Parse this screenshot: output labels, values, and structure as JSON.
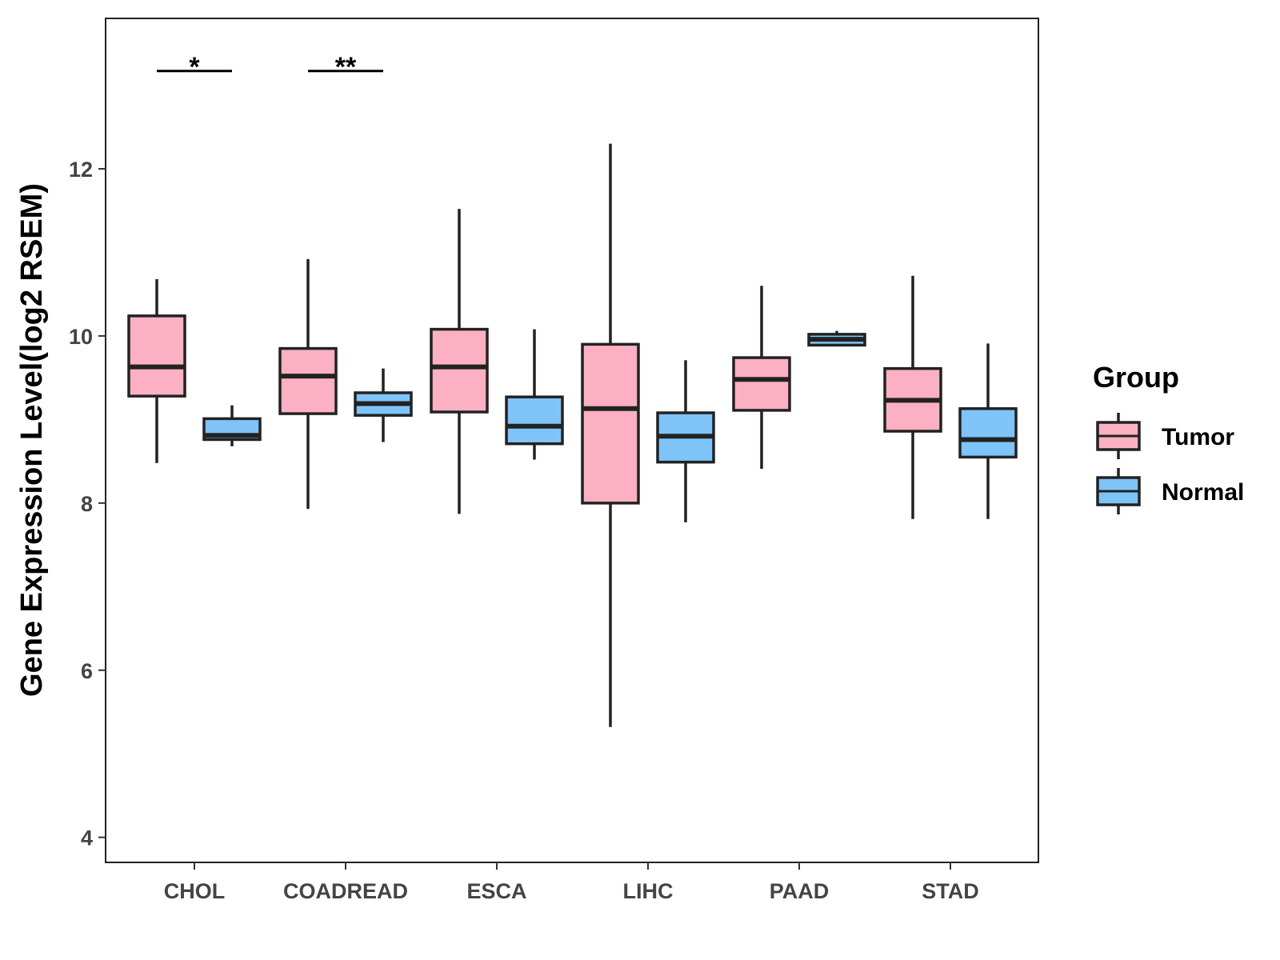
{
  "chart_data": {
    "type": "boxplot",
    "title": "",
    "xlabel": "",
    "ylabel": "Gene Expression Level(log2 RSEM)",
    "ylim": [
      3.7,
      13.8
    ],
    "yticks": [
      4,
      6,
      8,
      10,
      12
    ],
    "grid": false,
    "legend": {
      "title": "Group",
      "position": "right"
    },
    "categories": [
      "CHOL",
      "COADREAD",
      "ESCA",
      "LIHC",
      "PAAD",
      "STAD"
    ],
    "series": [
      {
        "name": "Tumor",
        "color": "#fbb1c3",
        "boxes": [
          {
            "min": 8.48,
            "q1": 9.28,
            "median": 9.63,
            "q3": 10.24,
            "max": 10.68
          },
          {
            "min": 7.93,
            "q1": 9.07,
            "median": 9.52,
            "q3": 9.85,
            "max": 10.92
          },
          {
            "min": 7.87,
            "q1": 9.09,
            "median": 9.63,
            "q3": 10.08,
            "max": 11.52
          },
          {
            "min": 5.32,
            "q1": 8.0,
            "median": 9.13,
            "q3": 9.9,
            "max": 12.3
          },
          {
            "min": 8.41,
            "q1": 9.11,
            "median": 9.48,
            "q3": 9.74,
            "max": 10.6
          },
          {
            "min": 7.81,
            "q1": 8.86,
            "median": 9.23,
            "q3": 9.61,
            "max": 10.72
          }
        ]
      },
      {
        "name": "Normal",
        "color": "#7fc4f9",
        "boxes": [
          {
            "min": 8.68,
            "q1": 8.76,
            "median": 8.81,
            "q3": 9.01,
            "max": 9.17
          },
          {
            "min": 8.73,
            "q1": 9.05,
            "median": 9.19,
            "q3": 9.32,
            "max": 9.61
          },
          {
            "min": 8.52,
            "q1": 8.71,
            "median": 8.92,
            "q3": 9.27,
            "max": 10.08
          },
          {
            "min": 7.77,
            "q1": 8.49,
            "median": 8.8,
            "q3": 9.08,
            "max": 9.71
          },
          {
            "min": 9.89,
            "q1": 9.89,
            "median": 9.96,
            "q3": 10.02,
            "max": 10.06
          },
          {
            "min": 7.81,
            "q1": 8.55,
            "median": 8.76,
            "q3": 9.13,
            "max": 9.91
          }
        ]
      }
    ],
    "significance": [
      {
        "category": "CHOL",
        "label": "*",
        "y": 13.17
      },
      {
        "category": "COADREAD",
        "label": "**",
        "y": 13.17
      }
    ]
  }
}
